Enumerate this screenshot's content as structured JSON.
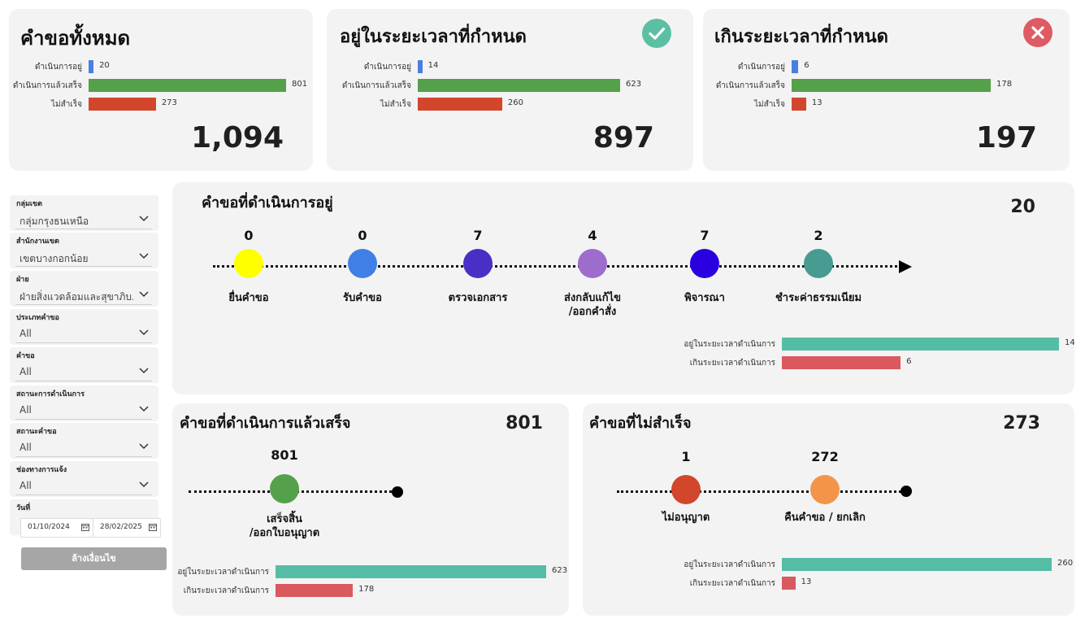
{
  "total_card": {
    "title": "คำขอทั้งหมด",
    "total": "1,094",
    "bars": [
      {
        "label": "ดำเนินการอยู่",
        "value": 20,
        "color": "#4a7fe0"
      },
      {
        "label": "ดำเนินการแล้วเสร็จ",
        "value": 801,
        "color": "#55a04a"
      },
      {
        "label": "ไม่สำเร็จ",
        "value": 273,
        "color": "#d2462c"
      }
    ]
  },
  "ontime_card": {
    "title": "อยู่ในระยะเวลาที่กำหนด",
    "total": "897",
    "icon": "check-circle-icon",
    "icon_color": "#5bbfa3",
    "bars": [
      {
        "label": "ดำเนินการอยู่",
        "value": 14,
        "color": "#4a7fe0"
      },
      {
        "label": "ดำเนินการแล้วเสร็จ",
        "value": 623,
        "color": "#55a04a"
      },
      {
        "label": "ไม่สำเร็จ",
        "value": 260,
        "color": "#d2462c"
      }
    ]
  },
  "overdue_card": {
    "title": "เกินระยะเวลาที่กำหนด",
    "total": "197",
    "icon": "x-circle-icon",
    "icon_color": "#de5b63",
    "bars": [
      {
        "label": "ดำเนินการอยู่",
        "value": 6,
        "color": "#4a7fe0"
      },
      {
        "label": "ดำเนินการแล้วเสร็จ",
        "value": 178,
        "color": "#55a04a"
      },
      {
        "label": "ไม่สำเร็จ",
        "value": 13,
        "color": "#d2462c"
      }
    ]
  },
  "filters": [
    {
      "label": "กลุ่มเขต",
      "value": "กลุ่มกรุงธนเหนือ"
    },
    {
      "label": "สำนักงานเขต",
      "value": "เขตบางกอกน้อย"
    },
    {
      "label": "ฝ่าย",
      "value": "ฝ่ายสิ่งแวดล้อมและสุขาภิบ..."
    },
    {
      "label": "ประเภทคำขอ",
      "value": "All"
    },
    {
      "label": "คำขอ",
      "value": "All"
    },
    {
      "label": "สถานะการดำเนินการ",
      "value": "All"
    },
    {
      "label": "สถานะคำขอ",
      "value": "All"
    },
    {
      "label": "ช่องทางการแจ้ง",
      "value": "All"
    }
  ],
  "date_filter": {
    "label": "วันที่",
    "start": "01/10/2024",
    "end": "28/02/2025"
  },
  "clear_button": "ล้างเงื่อนไข",
  "in_progress": {
    "title": "คำขอที่ดำเนินการอยู่",
    "total": "20",
    "stages": [
      {
        "count": "0",
        "label": "ยื่นคำขอ",
        "color": "#ffff00"
      },
      {
        "count": "0",
        "label": "รับคำขอ",
        "color": "#3f7fe6"
      },
      {
        "count": "7",
        "label": "ตรวจเอกสาร",
        "color": "#4a2fc7"
      },
      {
        "count": "4",
        "label": "ส่งกลับแก้ไข\n/ออกคำสั่ง",
        "color": "#9d6ccc"
      },
      {
        "count": "7",
        "label": "พิจารณา",
        "color": "#2b00e0"
      },
      {
        "count": "2",
        "label": "ชำระค่าธรรมเนียม",
        "color": "#469c90"
      }
    ],
    "bars": [
      {
        "label": "อยู่ในระยะเวลาดำเนินการ",
        "value": 14,
        "color": "#55bda5"
      },
      {
        "label": "เกินระยะเวลาดำเนินการ",
        "value": 6,
        "color": "#d9595f"
      }
    ]
  },
  "completed": {
    "title": "คำขอที่ดำเนินการแล้วเสร็จ",
    "total": "801",
    "stages": [
      {
        "count": "801",
        "label": "เสร็จสิ้น\n/ออกใบอนุญาต",
        "color": "#55a04a"
      }
    ],
    "bars": [
      {
        "label": "อยู่ในระยะเวลาดำเนินการ",
        "value": 623,
        "color": "#55bda5"
      },
      {
        "label": "เกินระยะเวลาดำเนินการ",
        "value": 178,
        "color": "#d9595f"
      }
    ]
  },
  "failed": {
    "title": "คำขอที่ไม่สำเร็จ",
    "total": "273",
    "stages": [
      {
        "count": "1",
        "label": "ไม่อนุญาต",
        "color": "#d2462c"
      },
      {
        "count": "272",
        "label": "คืนคำขอ / ยกเลิก",
        "color": "#f2954a"
      }
    ],
    "bars": [
      {
        "label": "อยู่ในระยะเวลาดำเนินการ",
        "value": 260,
        "color": "#55bda5"
      },
      {
        "label": "เกินระยะเวลาดำเนินการ",
        "value": 13,
        "color": "#d9595f"
      }
    ]
  }
}
